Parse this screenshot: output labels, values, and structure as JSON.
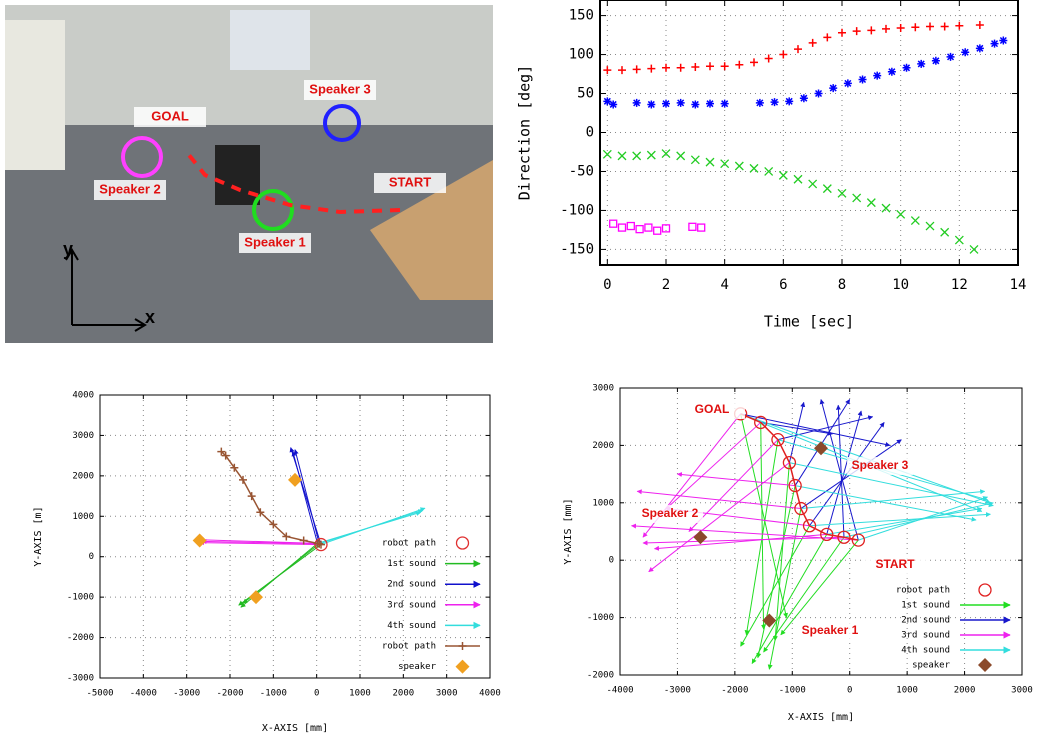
{
  "photo": {
    "labels": [
      "GOAL",
      "Speaker 3",
      "Speaker 2",
      "START",
      "Speaker 1",
      "y",
      "x"
    ]
  },
  "chart_data": [
    {
      "type": "scatter",
      "ylabel": "Direction [deg]",
      "xlabel": "Time [sec]",
      "xlim": [
        -0.25,
        14
      ],
      "ylim": [
        -170,
        170
      ],
      "xticks": [
        0,
        2,
        4,
        6,
        8,
        10,
        12,
        14
      ],
      "yticks": [
        -150,
        -100,
        -50,
        0,
        50,
        100,
        150
      ],
      "grid": true,
      "series": [
        {
          "color": "#ff0000",
          "marker": "plus",
          "x": [
            0,
            0.5,
            1,
            1.5,
            2,
            2.5,
            3,
            3.5,
            4,
            4.5,
            5,
            5.5,
            6,
            6.5,
            7,
            7.5,
            8,
            8.5,
            9,
            9.5,
            10,
            10.5,
            11,
            11.5,
            12,
            12.7
          ],
          "values": [
            80,
            80,
            81,
            82,
            83,
            83,
            84,
            85,
            85,
            87,
            90,
            95,
            100,
            107,
            115,
            122,
            128,
            130,
            131,
            133,
            134,
            135,
            136,
            136,
            137,
            138
          ]
        },
        {
          "color": "#0000ff",
          "marker": "star",
          "x": [
            0,
            0.2,
            1,
            1.5,
            2,
            2.5,
            3,
            3.5,
            4,
            5.2,
            5.7,
            6.2,
            6.7,
            7.2,
            7.7,
            8.2,
            8.7,
            9.2,
            9.7,
            10.2,
            10.7,
            11.2,
            11.7,
            12.2,
            12.7,
            13.2,
            13.5
          ],
          "values": [
            40,
            36,
            38,
            36,
            37,
            38,
            36,
            37,
            37,
            38,
            39,
            40,
            44,
            50,
            57,
            63,
            68,
            73,
            78,
            83,
            88,
            92,
            97,
            103,
            108,
            114,
            118
          ]
        },
        {
          "color": "#22cc22",
          "marker": "cross",
          "x": [
            0,
            0.5,
            1,
            1.5,
            2,
            2.5,
            3,
            3.5,
            4,
            4.5,
            5,
            5.5,
            6,
            6.5,
            7,
            7.5,
            8,
            8.5,
            9,
            9.5,
            10,
            10.5,
            11,
            11.5,
            12,
            12.5
          ],
          "values": [
            -28,
            -30,
            -30,
            -29,
            -27,
            -30,
            -35,
            -38,
            -40,
            -43,
            -46,
            -50,
            -55,
            -60,
            -66,
            -72,
            -78,
            -84,
            -90,
            -97,
            -105,
            -113,
            -120,
            -128,
            -138,
            -150
          ]
        },
        {
          "color": "#ff00ff",
          "marker": "square",
          "x": [
            0.2,
            0.5,
            0.8,
            1.1,
            1.4,
            1.7,
            2,
            2.9,
            3.2
          ],
          "values": [
            -117,
            -122,
            -120,
            -124,
            -122,
            -126,
            -123,
            -121,
            -122
          ]
        }
      ]
    },
    {
      "type": "quiver",
      "xlabel": "X-AXIS [mm]",
      "ylabel": "Y-AXIS [m]",
      "xlim": [
        -5000,
        4000
      ],
      "ylim": [
        -3000,
        4000
      ],
      "xticks": [
        -5000,
        -4000,
        -3000,
        -2000,
        -1000,
        0,
        1000,
        2000,
        3000,
        4000
      ],
      "yticks": [
        -3000,
        -2000,
        -1000,
        0,
        1000,
        2000,
        3000,
        4000
      ],
      "grid": true,
      "series": [
        {
          "name": "robot path",
          "color": "#e03030",
          "marker": "ring",
          "x": [
            100
          ],
          "values": [
            300
          ]
        },
        {
          "name": "1st sound",
          "color": "#22bb22",
          "marker": "arrow",
          "x": [
            -1800,
            -1700,
            -1750
          ],
          "values": [
            -1200,
            -1150,
            -1250
          ]
        },
        {
          "name": "2nd sound",
          "color": "#1010cc",
          "marker": "arrow",
          "x": [
            -600,
            -500,
            -550
          ],
          "values": [
            2700,
            2650,
            2600
          ]
        },
        {
          "name": "3rd sound",
          "color": "#ee22ee",
          "marker": "arrow",
          "x": [
            -2700,
            -2650,
            -2700
          ],
          "values": [
            350,
            380,
            420
          ]
        },
        {
          "name": "4th sound",
          "color": "#33dddd",
          "marker": "arrow",
          "x": [
            2500,
            2450,
            2400
          ],
          "values": [
            1200,
            1150,
            1100
          ]
        },
        {
          "name": "robot path",
          "color": "#995533",
          "marker": "line",
          "x": [
            100,
            60,
            20,
            -300,
            -700,
            -1000,
            -1300,
            -1500,
            -1700,
            -1900,
            -2100,
            -2200
          ],
          "values": [
            300,
            320,
            330,
            400,
            500,
            800,
            1100,
            1500,
            1900,
            2200,
            2500,
            2600
          ]
        },
        {
          "name": "speaker",
          "color": "#f0a020",
          "marker": "diamond",
          "x": [
            -2700,
            -1400,
            -500
          ],
          "values": [
            400,
            -1000,
            1900
          ]
        }
      ]
    },
    {
      "type": "quiver",
      "xlabel": "X-AXIS [mm]",
      "ylabel": "Y-AXIS [mm]",
      "xlim": [
        -4000,
        3000
      ],
      "ylim": [
        -2000,
        3000
      ],
      "xticks": [
        -4000,
        -3000,
        -2000,
        -1000,
        0,
        1000,
        2000,
        3000
      ],
      "yticks": [
        -2000,
        -1000,
        0,
        1000,
        2000,
        3000
      ],
      "grid": true,
      "annotations": [
        "GOAL",
        "Speaker 3",
        "Speaker 2",
        "START",
        "Speaker 1"
      ],
      "series": [
        {
          "name": "robot path",
          "color": "#e02020",
          "marker": "ring-line",
          "x": [
            150,
            -100,
            -400,
            -700,
            -850,
            -950,
            -1050,
            -1250,
            -1550,
            -1900
          ],
          "values": [
            350,
            400,
            450,
            600,
            900,
            1300,
            1700,
            2100,
            2400,
            2550
          ]
        },
        {
          "name": "1st sound",
          "color": "#22dd22",
          "marker": "arrow",
          "x": [
            -1200,
            -1500,
            -1700,
            -1900,
            -1400,
            -1600,
            -1300,
            -1800,
            -1500,
            -1100
          ],
          "values": [
            -1300,
            -1600,
            -1800,
            -1500,
            -1900,
            -1700,
            -1400,
            -1300,
            -1200,
            -1000
          ]
        },
        {
          "name": "2nd sound",
          "color": "#1818cc",
          "marker": "arrow",
          "x": [
            -500,
            -200,
            200,
            600,
            900,
            0,
            -800,
            400,
            -300,
            700
          ],
          "values": [
            2800,
            2700,
            2600,
            2400,
            2100,
            2800,
            2750,
            2500,
            2200,
            2000
          ]
        },
        {
          "name": "3rd sound",
          "color": "#ee22ee",
          "marker": "arrow",
          "x": [
            -3800,
            -3600,
            -3400,
            -3200,
            -3700,
            -3000,
            -3500,
            -2800,
            -3300,
            -3600
          ],
          "values": [
            600,
            300,
            200,
            900,
            1200,
            1500,
            -200,
            500,
            800,
            400
          ]
        },
        {
          "name": "4th sound",
          "color": "#33dddd",
          "marker": "arrow",
          "x": [
            2400,
            2500,
            2300,
            2450,
            2350,
            2200,
            2500,
            2400,
            2300,
            2450
          ],
          "values": [
            1100,
            1000,
            900,
            800,
            1200,
            700,
            950,
            1050,
            850,
            1000
          ]
        },
        {
          "name": "speaker",
          "color": "#8b4a2b",
          "marker": "diamond",
          "x": [
            -2600,
            -1400,
            -500
          ],
          "values": [
            400,
            -1050,
            1950
          ]
        }
      ]
    }
  ]
}
